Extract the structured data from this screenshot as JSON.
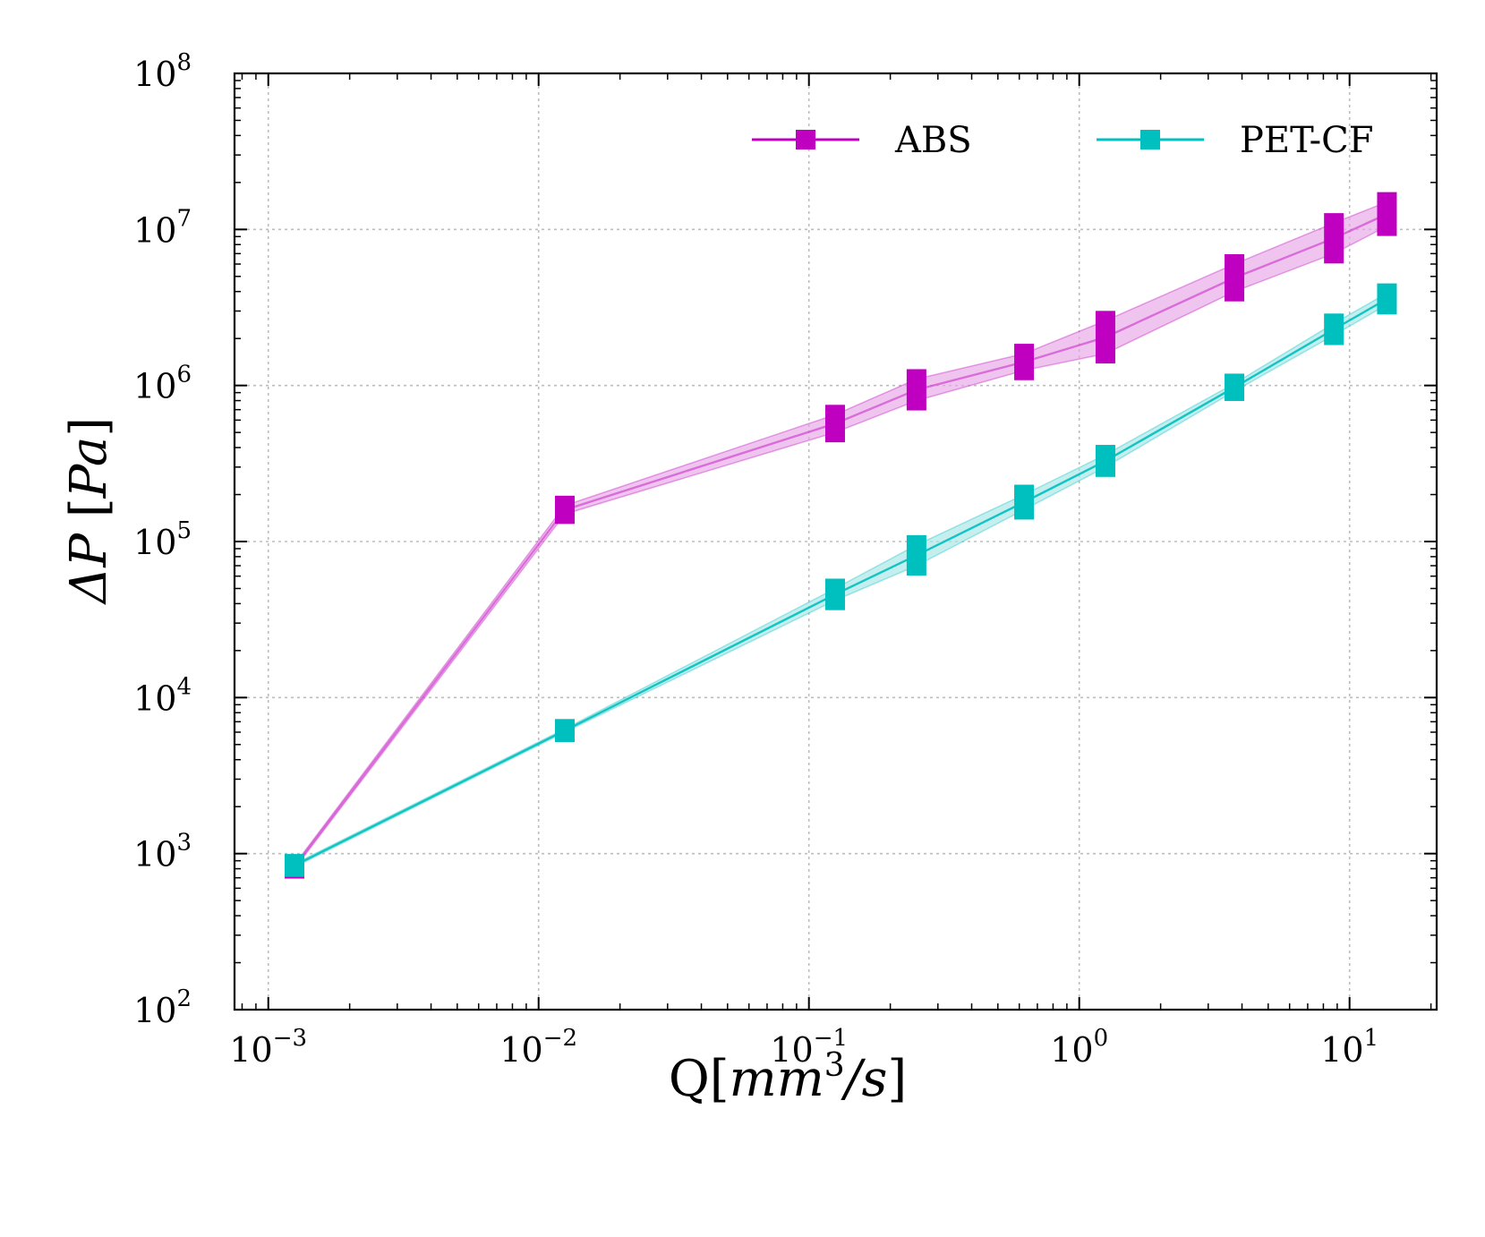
{
  "chart_data": {
    "type": "line",
    "title": "",
    "xlabel": "Q[mm^3/s]",
    "ylabel": "ΔP [Pa]",
    "x_label_parts": {
      "main": "Q",
      "unit_base": "mm",
      "unit_exp": "3",
      "unit_tail": "/s"
    },
    "y_label_parts": {
      "symbol": "ΔP",
      "unit": "Pa"
    },
    "xscale": "log",
    "yscale": "log",
    "xlim": [
      0.00075,
      21
    ],
    "ylim": [
      100,
      100000000
    ],
    "x_ticks": [
      {
        "value": 0.001,
        "base": "10",
        "exp": "−3"
      },
      {
        "value": 0.01,
        "base": "10",
        "exp": "−2"
      },
      {
        "value": 0.1,
        "base": "10",
        "exp": "−1"
      },
      {
        "value": 1,
        "base": "10",
        "exp": "0"
      },
      {
        "value": 10,
        "base": "10",
        "exp": "1"
      }
    ],
    "y_ticks": [
      {
        "value": 100,
        "base": "10",
        "exp": "2"
      },
      {
        "value": 1000,
        "base": "10",
        "exp": "3"
      },
      {
        "value": 10000,
        "base": "10",
        "exp": "4"
      },
      {
        "value": 100000,
        "base": "10",
        "exp": "5"
      },
      {
        "value": 1000000,
        "base": "10",
        "exp": "6"
      },
      {
        "value": 10000000,
        "base": "10",
        "exp": "7"
      },
      {
        "value": 100000000,
        "base": "10",
        "exp": "8"
      }
    ],
    "grid": true,
    "legend_position": "top-right",
    "series": [
      {
        "name": "ABS",
        "color": "#c000c0",
        "fill_color": "#e6a6e6",
        "x": [
          0.00125,
          0.0125,
          0.125,
          0.25,
          0.625,
          1.25,
          3.75,
          8.75,
          13.75
        ],
        "lower": [
          800,
          150000,
          500000,
          800000,
          1250000,
          1600000,
          4000000,
          7000000,
          10500000
        ],
        "upper": [
          850,
          170000,
          650000,
          1100000,
          1600000,
          2600000,
          6000000,
          11000000,
          15000000
        ]
      },
      {
        "name": "PET-CF",
        "color": "#00bfbf",
        "fill_color": "#a6e6e6",
        "x": [
          0.00125,
          0.0125,
          0.125,
          0.25,
          0.625,
          1.25,
          3.75,
          8.75,
          13.75
        ],
        "lower": [
          820,
          6000,
          42000,
          70000,
          160000,
          300000,
          920000,
          2100000,
          3300000
        ],
        "upper": [
          860,
          6300,
          50000,
          95000,
          200000,
          360000,
          1030000,
          2500000,
          3900000
        ]
      }
    ]
  }
}
